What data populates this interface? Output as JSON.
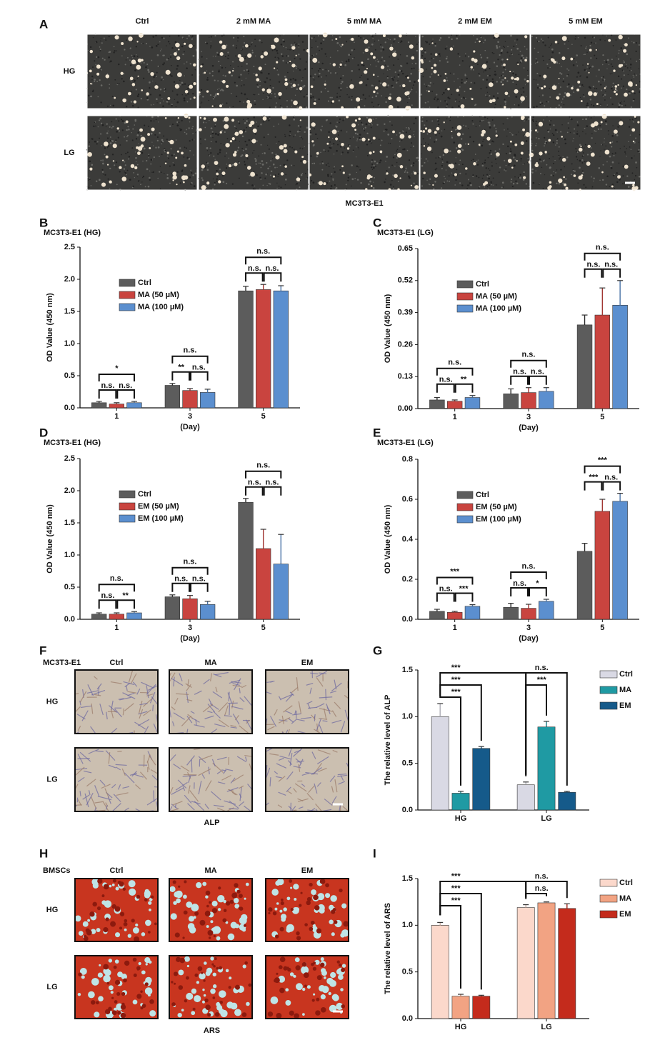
{
  "image_panels": [
    {
      "letter": "A",
      "columns": [
        "Ctrl",
        "2 mM MA",
        "5 mM MA",
        "2 mM EM",
        "5 mM EM"
      ],
      "rows": [
        "HG",
        "LG"
      ],
      "caption": "MC3T3-E1"
    },
    {
      "letter": "F",
      "cell_line": "MC3T3-E1",
      "columns": [
        "Ctrl",
        "MA",
        "EM"
      ],
      "rows": [
        "HG",
        "LG"
      ],
      "caption": "ALP"
    },
    {
      "letter": "H",
      "cell_line": "BMSCs",
      "columns": [
        "Ctrl",
        "MA",
        "EM"
      ],
      "rows": [
        "HG",
        "LG"
      ],
      "caption": "ARS"
    }
  ],
  "chart_data": [
    {
      "type": "bar",
      "panel": "B",
      "title": "MC3T3-E1 (HG)",
      "x_label": "(Day)",
      "y_label": "OD Value (450 nm)",
      "categories": [
        "1",
        "3",
        "5"
      ],
      "series": [
        {
          "name": "Ctrl",
          "color": "#5c5c5c",
          "values": [
            0.08,
            0.35,
            1.82
          ],
          "errors": [
            0.02,
            0.03,
            0.07
          ]
        },
        {
          "name": "MA (50 µM)",
          "color": "#c9443f",
          "values": [
            0.06,
            0.27,
            1.84
          ],
          "errors": [
            0.02,
            0.03,
            0.08
          ]
        },
        {
          "name": "MA (100 µM)",
          "color": "#5b8fcf",
          "values": [
            0.08,
            0.24,
            1.82
          ],
          "errors": [
            0.02,
            0.05,
            0.08
          ]
        }
      ],
      "comparisons": [
        [
          "*",
          "n.s.",
          "n.s."
        ],
        [
          "n.s.",
          "**",
          "n.s."
        ],
        [
          "n.s.",
          "n.s.",
          "n.s."
        ]
      ],
      "ylim": [
        0,
        2.5
      ],
      "yticks": [
        {
          "value": 0,
          "label": "0.0"
        },
        0.5,
        {
          "value": 1,
          "label": "1.0"
        },
        1.5,
        {
          "value": 2,
          "label": "2.0"
        },
        2.5
      ],
      "legend": "upper left"
    },
    {
      "type": "bar",
      "panel": "C",
      "title": "MC3T3-E1 (LG)",
      "x_label": "(Day)",
      "y_label": "OD Value (450 nm)",
      "categories": [
        "1",
        "3",
        "5"
      ],
      "series": [
        {
          "name": "Ctrl",
          "color": "#5c5c5c",
          "values": [
            0.035,
            0.06,
            0.34
          ],
          "errors": [
            0.01,
            0.02,
            0.04
          ]
        },
        {
          "name": "MA (50 µM)",
          "color": "#c9443f",
          "values": [
            0.03,
            0.065,
            0.38
          ],
          "errors": [
            0.005,
            0.02,
            0.11
          ]
        },
        {
          "name": "MA (100 µM)",
          "color": "#5b8fcf",
          "values": [
            0.045,
            0.07,
            0.42
          ],
          "errors": [
            0.008,
            0.015,
            0.1
          ]
        }
      ],
      "comparisons": [
        [
          "n.s.",
          "n.s.",
          "**"
        ],
        [
          "n.s.",
          "n.s.",
          "n.s."
        ],
        [
          "n.s.",
          "n.s.",
          "n.s."
        ]
      ],
      "ylim": [
        0,
        0.65
      ],
      "yticks": [
        {
          "value": 0,
          "label": "0.00"
        },
        0.13,
        0.26,
        0.39,
        0.52,
        0.65
      ],
      "legend": "upper left"
    },
    {
      "type": "bar",
      "panel": "D",
      "title": "MC3T3-E1 (HG)",
      "x_label": "(Day)",
      "y_label": "OD Value (450 nm)",
      "categories": [
        "1",
        "3",
        "5"
      ],
      "series": [
        {
          "name": "Ctrl",
          "color": "#5c5c5c",
          "values": [
            0.08,
            0.35,
            1.82
          ],
          "errors": [
            0.02,
            0.03,
            0.06
          ]
        },
        {
          "name": "EM (50 µM)",
          "color": "#c9443f",
          "values": [
            0.08,
            0.32,
            1.1
          ],
          "errors": [
            0.02,
            0.05,
            0.3
          ]
        },
        {
          "name": "EM (100 µM)",
          "color": "#5b8fcf",
          "values": [
            0.1,
            0.23,
            0.86
          ],
          "errors": [
            0.02,
            0.05,
            0.46
          ]
        }
      ],
      "comparisons": [
        [
          "n.s.",
          "n.s.",
          "**"
        ],
        [
          "n.s.",
          "n.s.",
          "n.s."
        ],
        [
          "n.s.",
          "n.s.",
          "n.s."
        ]
      ],
      "ylim": [
        0,
        2.5
      ],
      "yticks": [
        {
          "value": 0,
          "label": "0.0"
        },
        0.5,
        {
          "value": 1,
          "label": "1.0"
        },
        1.5,
        {
          "value": 2,
          "label": "2.0"
        },
        2.5
      ],
      "legend": "upper left"
    },
    {
      "type": "bar",
      "panel": "E",
      "title": "MC3T3-E1 (LG)",
      "x_label": "(Day)",
      "y_label": "OD Value (450 nm)",
      "categories": [
        "1",
        "3",
        "5"
      ],
      "series": [
        {
          "name": "Ctrl",
          "color": "#5c5c5c",
          "values": [
            0.04,
            0.06,
            0.34
          ],
          "errors": [
            0.01,
            0.02,
            0.04
          ]
        },
        {
          "name": "EM (50 µM)",
          "color": "#c9443f",
          "values": [
            0.035,
            0.055,
            0.54
          ],
          "errors": [
            0.005,
            0.02,
            0.06
          ]
        },
        {
          "name": "EM (100 µM)",
          "color": "#5b8fcf",
          "values": [
            0.065,
            0.09,
            0.59
          ],
          "errors": [
            0.008,
            0.01,
            0.04
          ]
        }
      ],
      "comparisons": [
        [
          "***",
          "n.s.",
          "***"
        ],
        [
          "n.s.",
          "n.s.",
          "*"
        ],
        [
          "***",
          "***",
          "n.s."
        ]
      ],
      "ylim": [
        0,
        0.8
      ],
      "yticks": [
        {
          "value": 0,
          "label": "0.0"
        },
        0.2,
        0.4,
        0.6,
        0.8
      ],
      "legend": "upper left"
    },
    {
      "type": "bar",
      "panel": "G",
      "y_label": "The relative level of ALP",
      "categories": [
        "HG",
        "LG"
      ],
      "series": [
        {
          "name": "Ctrl",
          "color": "#d9d9e4",
          "values": [
            1.0,
            0.27
          ],
          "errors": [
            0.14,
            0.03
          ]
        },
        {
          "name": "MA",
          "color": "#1f9aa3",
          "values": [
            0.18,
            0.89
          ],
          "errors": [
            0.02,
            0.06
          ]
        },
        {
          "name": "EM",
          "color": "#155a8a",
          "values": [
            0.66,
            0.19
          ],
          "errors": [
            0.02,
            0.01
          ]
        }
      ],
      "comparisons": [
        {
          "text": "***",
          "from": [
            "HG",
            "Ctrl"
          ],
          "to": [
            "HG",
            "MA"
          ]
        },
        {
          "text": "***",
          "from": [
            "HG",
            "Ctrl"
          ],
          "to": [
            "HG",
            "EM"
          ]
        },
        {
          "text": "***",
          "from": [
            "HG",
            "Ctrl"
          ],
          "to": [
            "LG",
            "Ctrl"
          ]
        },
        {
          "text": "***",
          "from": [
            "LG",
            "Ctrl"
          ],
          "to": [
            "LG",
            "MA"
          ]
        },
        {
          "text": "n.s.",
          "from": [
            "LG",
            "Ctrl"
          ],
          "to": [
            "LG",
            "EM"
          ]
        }
      ],
      "ylim": [
        0,
        1.5
      ],
      "yticks": [
        {
          "value": 0,
          "label": "0.0"
        },
        0.5,
        {
          "value": 1,
          "label": "1.0"
        },
        1.5
      ],
      "legend": "right"
    },
    {
      "type": "bar",
      "panel": "I",
      "y_label": "The relative level of ARS",
      "categories": [
        "HG",
        "LG"
      ],
      "series": [
        {
          "name": "Ctrl",
          "color": "#fbd8cb",
          "values": [
            1.0,
            1.19
          ],
          "errors": [
            0.03,
            0.03
          ]
        },
        {
          "name": "MA",
          "color": "#f2a383",
          "values": [
            0.24,
            1.24
          ],
          "errors": [
            0.02,
            0.01
          ]
        },
        {
          "name": "EM",
          "color": "#c42b1c",
          "values": [
            0.24,
            1.18
          ],
          "errors": [
            0.01,
            0.05
          ]
        }
      ],
      "comparisons": [
        {
          "text": "***",
          "from": [
            "HG",
            "Ctrl"
          ],
          "to": [
            "HG",
            "MA"
          ]
        },
        {
          "text": "***",
          "from": [
            "HG",
            "Ctrl"
          ],
          "to": [
            "HG",
            "EM"
          ]
        },
        {
          "text": "***",
          "from": [
            "HG",
            "Ctrl"
          ],
          "to": [
            "LG",
            "Ctrl"
          ]
        },
        {
          "text": "n.s.",
          "from": [
            "LG",
            "Ctrl"
          ],
          "to": [
            "LG",
            "MA"
          ]
        },
        {
          "text": "n.s.",
          "from": [
            "LG",
            "Ctrl"
          ],
          "to": [
            "LG",
            "EM"
          ]
        }
      ],
      "ylim": [
        0,
        1.5
      ],
      "yticks": [
        {
          "value": 0,
          "label": "0.0"
        },
        0.5,
        {
          "value": 1,
          "label": "1.0"
        },
        1.5
      ],
      "legend": "right"
    }
  ]
}
